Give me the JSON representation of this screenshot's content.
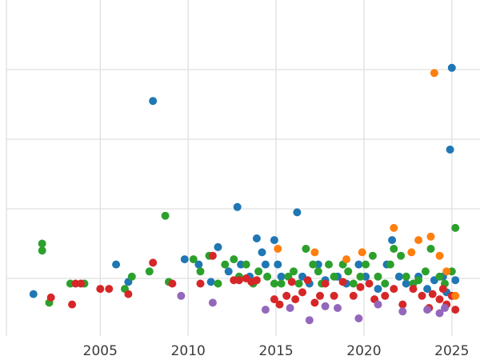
{
  "chart_data": {
    "type": "scatter",
    "title": "",
    "xlabel": "",
    "ylabel": "",
    "xlim": [
      1999.3,
      2026.6
    ],
    "ylim": [
      0,
      10
    ],
    "x_tick_values": [
      2005,
      2010,
      2015,
      2020,
      2025
    ],
    "x_tick_labels": [
      "2005",
      "2010",
      "2015",
      "2020",
      "2025"
    ],
    "y_gridline_values": [
      2,
      4,
      6,
      8
    ],
    "grid": true,
    "legend_position": "none",
    "y_tick_labels_visible": false,
    "styles": {
      "background_color": "#ffffff",
      "grid_color": "#e0e0e0",
      "tick_label_color": "#3b3b3b",
      "marker_radius": 5
    },
    "series": [
      {
        "name": "blue",
        "color": "#1f77b4",
        "points": [
          [
            2001.2,
            1.55
          ],
          [
            2005.9,
            2.4
          ],
          [
            2006.6,
            1.9
          ],
          [
            2008.0,
            7.1
          ],
          [
            2009.8,
            2.55
          ],
          [
            2010.6,
            2.4
          ],
          [
            2011.3,
            1.9
          ],
          [
            2011.7,
            2.9
          ],
          [
            2012.3,
            2.2
          ],
          [
            2012.8,
            4.05
          ],
          [
            2013.0,
            2.4
          ],
          [
            2013.5,
            2.05
          ],
          [
            2013.9,
            3.15
          ],
          [
            2014.2,
            2.75
          ],
          [
            2014.4,
            2.4
          ],
          [
            2014.9,
            3.1
          ],
          [
            2015.1,
            2.4
          ],
          [
            2015.3,
            2.05
          ],
          [
            2016.2,
            3.9
          ],
          [
            2016.5,
            2.05
          ],
          [
            2016.9,
            1.85
          ],
          [
            2017.4,
            2.4
          ],
          [
            2017.8,
            1.95
          ],
          [
            2018.5,
            2.05
          ],
          [
            2019.0,
            1.85
          ],
          [
            2019.7,
            2.4
          ],
          [
            2020.1,
            2.05
          ],
          [
            2020.8,
            1.7
          ],
          [
            2021.3,
            2.4
          ],
          [
            2021.6,
            3.1
          ],
          [
            2022.0,
            2.05
          ],
          [
            2022.4,
            1.85
          ],
          [
            2023.1,
            2.05
          ],
          [
            2023.6,
            1.7
          ],
          [
            2024.0,
            1.95
          ],
          [
            2024.5,
            2.05
          ],
          [
            2024.7,
            1.6
          ],
          [
            2024.9,
            5.7
          ],
          [
            2025.0,
            8.05
          ],
          [
            2025.2,
            1.95
          ]
        ]
      },
      {
        "name": "green",
        "color": "#2ca02c",
        "points": [
          [
            2001.7,
            3.0
          ],
          [
            2001.7,
            2.8
          ],
          [
            2002.1,
            1.3
          ],
          [
            2003.3,
            1.85
          ],
          [
            2004.1,
            1.85
          ],
          [
            2006.4,
            1.7
          ],
          [
            2006.8,
            2.05
          ],
          [
            2007.8,
            2.2
          ],
          [
            2008.7,
            3.8
          ],
          [
            2008.9,
            1.9
          ],
          [
            2010.3,
            2.55
          ],
          [
            2010.7,
            2.2
          ],
          [
            2011.2,
            2.65
          ],
          [
            2011.7,
            1.85
          ],
          [
            2012.1,
            2.4
          ],
          [
            2012.6,
            2.55
          ],
          [
            2012.9,
            2.05
          ],
          [
            2013.3,
            2.4
          ],
          [
            2013.7,
            1.85
          ],
          [
            2014.0,
            2.2
          ],
          [
            2014.5,
            2.05
          ],
          [
            2014.9,
            1.85
          ],
          [
            2015.3,
            1.85
          ],
          [
            2015.7,
            2.05
          ],
          [
            2016.0,
            2.2
          ],
          [
            2016.3,
            1.85
          ],
          [
            2016.7,
            2.85
          ],
          [
            2017.1,
            2.4
          ],
          [
            2017.4,
            2.2
          ],
          [
            2017.6,
            1.85
          ],
          [
            2018.0,
            2.4
          ],
          [
            2018.3,
            2.05
          ],
          [
            2018.8,
            2.4
          ],
          [
            2019.1,
            2.2
          ],
          [
            2019.4,
            1.85
          ],
          [
            2019.8,
            2.05
          ],
          [
            2020.1,
            2.4
          ],
          [
            2020.5,
            2.65
          ],
          [
            2020.8,
            2.05
          ],
          [
            2021.2,
            1.85
          ],
          [
            2021.5,
            2.4
          ],
          [
            2021.7,
            2.85
          ],
          [
            2022.1,
            2.65
          ],
          [
            2022.4,
            2.05
          ],
          [
            2022.8,
            1.85
          ],
          [
            2023.1,
            1.95
          ],
          [
            2023.5,
            2.2
          ],
          [
            2023.8,
            2.85
          ],
          [
            2024.3,
            2.05
          ],
          [
            2024.6,
            1.85
          ],
          [
            2025.0,
            2.2
          ],
          [
            2025.2,
            3.45
          ]
        ]
      },
      {
        "name": "red",
        "color": "#d62728",
        "points": [
          [
            2002.2,
            1.45
          ],
          [
            2003.4,
            1.25
          ],
          [
            2003.6,
            1.85
          ],
          [
            2003.9,
            1.85
          ],
          [
            2005.0,
            1.7
          ],
          [
            2005.5,
            1.7
          ],
          [
            2006.6,
            1.55
          ],
          [
            2008.0,
            2.45
          ],
          [
            2009.1,
            1.85
          ],
          [
            2010.7,
            1.85
          ],
          [
            2011.4,
            2.65
          ],
          [
            2012.6,
            1.95
          ],
          [
            2012.9,
            1.95
          ],
          [
            2013.3,
            2.0
          ],
          [
            2013.6,
            1.9
          ],
          [
            2013.9,
            1.95
          ],
          [
            2014.9,
            1.4
          ],
          [
            2015.2,
            1.25
          ],
          [
            2015.6,
            1.5
          ],
          [
            2015.9,
            1.9
          ],
          [
            2016.1,
            1.4
          ],
          [
            2016.5,
            1.6
          ],
          [
            2016.8,
            1.95
          ],
          [
            2017.2,
            1.3
          ],
          [
            2017.5,
            1.5
          ],
          [
            2017.8,
            1.85
          ],
          [
            2018.3,
            1.5
          ],
          [
            2018.8,
            1.9
          ],
          [
            2019.4,
            1.5
          ],
          [
            2019.8,
            1.75
          ],
          [
            2020.3,
            1.85
          ],
          [
            2020.6,
            1.4
          ],
          [
            2021.2,
            1.5
          ],
          [
            2021.7,
            1.7
          ],
          [
            2022.2,
            1.25
          ],
          [
            2022.8,
            1.7
          ],
          [
            2023.3,
            1.5
          ],
          [
            2023.7,
            1.15
          ],
          [
            2023.9,
            1.55
          ],
          [
            2024.3,
            1.4
          ],
          [
            2024.5,
            1.7
          ],
          [
            2024.7,
            1.25
          ],
          [
            2025.0,
            1.5
          ],
          [
            2025.2,
            1.1
          ]
        ]
      },
      {
        "name": "orange",
        "color": "#ff7f0e",
        "points": [
          [
            2015.1,
            2.85
          ],
          [
            2017.2,
            2.75
          ],
          [
            2019.0,
            2.55
          ],
          [
            2019.9,
            2.75
          ],
          [
            2021.7,
            3.45
          ],
          [
            2022.7,
            2.75
          ],
          [
            2023.1,
            3.1
          ],
          [
            2023.8,
            3.2
          ],
          [
            2024.0,
            7.9
          ],
          [
            2024.3,
            2.65
          ],
          [
            2024.7,
            2.2
          ],
          [
            2025.2,
            1.5
          ]
        ]
      },
      {
        "name": "purple",
        "color": "#9467bd",
        "points": [
          [
            2009.6,
            1.5
          ],
          [
            2011.4,
            1.3
          ],
          [
            2014.4,
            1.1
          ],
          [
            2015.8,
            1.15
          ],
          [
            2016.9,
            0.8
          ],
          [
            2017.8,
            1.2
          ],
          [
            2018.5,
            1.15
          ],
          [
            2019.7,
            0.85
          ],
          [
            2020.8,
            1.25
          ],
          [
            2022.2,
            1.05
          ],
          [
            2023.6,
            1.1
          ],
          [
            2024.3,
            1.0
          ],
          [
            2024.6,
            1.15
          ]
        ]
      }
    ]
  }
}
